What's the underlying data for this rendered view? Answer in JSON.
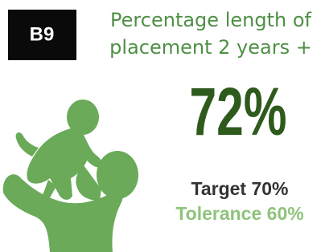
{
  "badge": "B9",
  "title_lines": [
    "Percentage length of",
    "placement 2 years +"
  ],
  "value": "72%",
  "target": "Target 70%",
  "tolerance": "Tolerance 60%"
}
